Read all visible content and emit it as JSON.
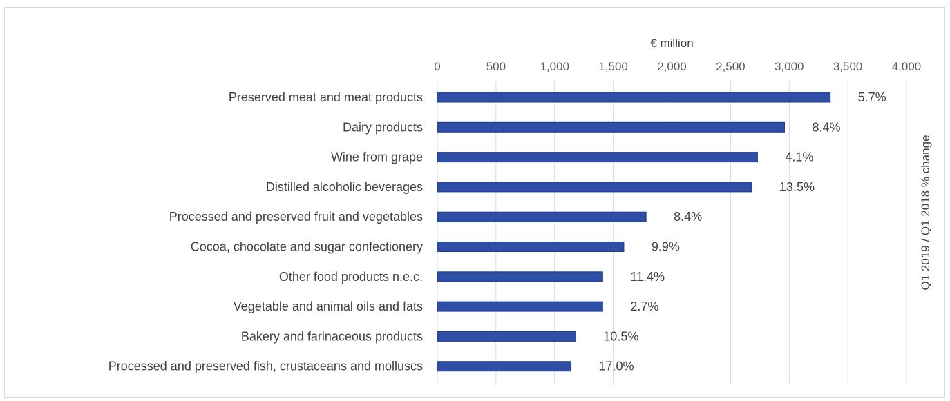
{
  "chart_data": {
    "type": "bar",
    "orientation": "horizontal",
    "xlabel": "€ million",
    "right_axis_label": "Q1 2019 / Q1 2018 % change",
    "xlim": [
      0,
      4000
    ],
    "x_ticks": [
      "0",
      "500",
      "1,000",
      "1,500",
      "2,000",
      "2,500",
      "3,000",
      "3,500",
      "4,000"
    ],
    "x_axis_position": "top",
    "grid": true,
    "bar_color": "#2f4fa7",
    "categories": [
      "Preserved meat and meat products",
      "Dairy products",
      "Wine from grape",
      "Distilled alcoholic beverages",
      "Processed and preserved fruit and vegetables",
      "Cocoa, chocolate and sugar confectionery",
      "Other food products n.e.c.",
      "Vegetable and animal oils and fats",
      "Bakery and farinaceous products",
      "Processed and preserved fish, crustaceans and molluscs"
    ],
    "values": [
      3350,
      2960,
      2730,
      2680,
      1780,
      1590,
      1410,
      1410,
      1180,
      1140
    ],
    "pct_change_labels": [
      "5.7%",
      "8.4%",
      "4.1%",
      "13.5%",
      "8.4%",
      "9.9%",
      "11.4%",
      "2.7%",
      "10.5%",
      "17.0%"
    ]
  }
}
